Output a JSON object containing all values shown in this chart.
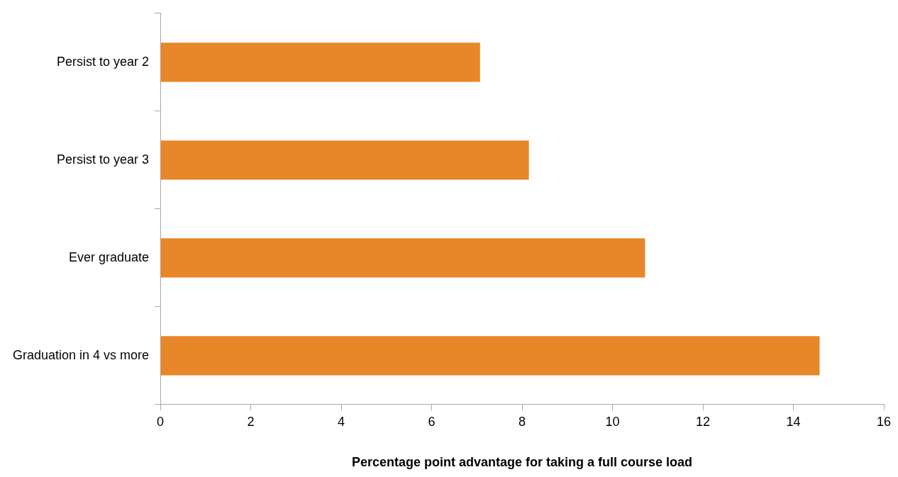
{
  "chart_data": {
    "type": "bar",
    "orientation": "horizontal",
    "categories": [
      "Persist to year 2",
      "Persist to year 3",
      "Ever graduate",
      "Graduation in 4 vs more"
    ],
    "values": [
      7.07,
      8.15,
      10.72,
      14.58
    ],
    "color": "#e8862a",
    "xlabel": "Percentage point advantage for taking a full course load",
    "xlim": [
      0,
      16
    ],
    "xticks": [
      0,
      2,
      4,
      6,
      8,
      10,
      12,
      14,
      16
    ],
    "grid": false,
    "legend": false
  }
}
